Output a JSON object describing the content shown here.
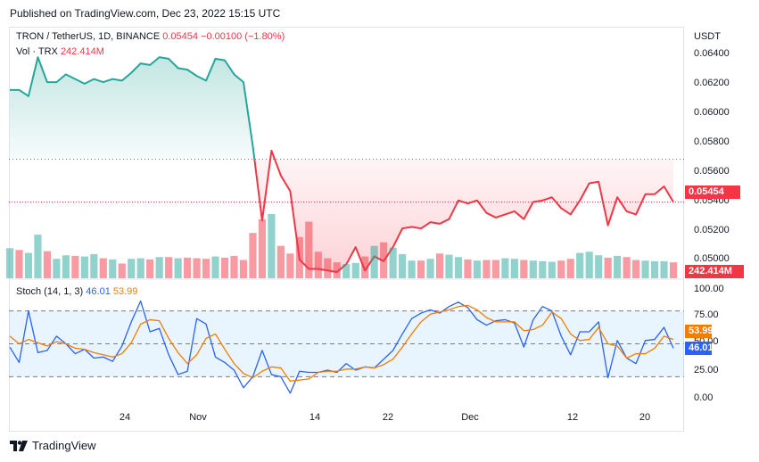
{
  "header": {
    "published": "Published on TradingView.com, Dec 23, 2022 15:15 UTC"
  },
  "legend": {
    "symbol": "TRON / TetherUS, 1D, BINANCE",
    "price": "0.05454",
    "change": "−0.00100 (−1.80%)",
    "volume_label": "Vol · TRX",
    "volume_value": "242.414M",
    "stoch_label": "Stoch (14, 1, 3)",
    "stoch_k": "46.01",
    "stoch_d": "53.99"
  },
  "price_axis": {
    "currency": "USDT",
    "ticks": [
      "0.06400",
      "0.06200",
      "0.06000",
      "0.05800",
      "0.05600",
      "0.05400",
      "0.05200",
      "0.05000"
    ],
    "last_price_tag": "0.05454",
    "volume_tag": "242.414M"
  },
  "stoch_axis": {
    "ticks": [
      "100.00",
      "75.00",
      "50.00",
      "25.00",
      "0.00"
    ],
    "d_tag": "53.99",
    "k_tag": "46.01"
  },
  "time_axis": {
    "ticks": [
      "24",
      "Nov",
      "14",
      "22",
      "Dec",
      "12",
      "20"
    ]
  },
  "footer": {
    "brand": "TradingView"
  },
  "colors": {
    "up": "#26a69a",
    "down": "#f23645",
    "stoch_k": "#2962ff",
    "stoch_d": "#f57c00"
  },
  "chart_data": [
    {
      "type": "area",
      "title": "TRON / TetherUS, 1D, BINANCE",
      "x_ticks": [
        "24",
        "Nov",
        "14",
        "22",
        "Dec",
        "12",
        "20"
      ],
      "ylim": [
        0.0496,
        0.0657
      ],
      "baseline": 0.05725,
      "series": [
        {
          "name": "TRXUSDT",
          "values": [
            0.0617,
            0.0617,
            0.0613,
            0.0638,
            0.0622,
            0.0622,
            0.0627,
            0.0624,
            0.0621,
            0.0624,
            0.0622,
            0.0624,
            0.0623,
            0.0628,
            0.0634,
            0.0633,
            0.0638,
            0.0637,
            0.0631,
            0.063,
            0.0626,
            0.0623,
            0.0637,
            0.0636,
            0.0627,
            0.0622,
            0.0581,
            0.0533,
            0.0578,
            0.0562,
            0.0552,
            0.0508,
            0.0502,
            0.0502,
            0.0501,
            0.05,
            0.0505,
            0.0516,
            0.0501,
            0.051,
            0.0507,
            0.0516,
            0.0528,
            0.0529,
            0.0528,
            0.0532,
            0.0531,
            0.0534,
            0.0546,
            0.0544,
            0.0546,
            0.0538,
            0.0535,
            0.0537,
            0.0539,
            0.0534,
            0.0545,
            0.0546,
            0.0548,
            0.0541,
            0.0537,
            0.0546,
            0.0557,
            0.0558,
            0.053,
            0.0548,
            0.0539,
            0.0537,
            0.055,
            0.055,
            0.0555,
            0.0545
          ]
        }
      ]
    },
    {
      "type": "bar",
      "title": "Vol · TRX",
      "last_value": "242.414M",
      "series": [
        {
          "name": "Volume",
          "values": [
            5.1,
            4.8,
            4.3,
            7.4,
            4.6,
            3.3,
            3.9,
            3.8,
            3.7,
            4.1,
            3.4,
            3.2,
            2.5,
            3.3,
            3.4,
            3.2,
            3.6,
            3.6,
            3.4,
            3.5,
            3.4,
            3.3,
            3.7,
            3.5,
            3.8,
            3.1,
            7.7,
            10.0,
            10.9,
            5.5,
            4.2,
            7.0,
            9.6,
            4.5,
            3.4,
            2.7,
            2.4,
            2.6,
            3.7,
            5.5,
            6.1,
            5.2,
            4.1,
            3.0,
            3.0,
            3.3,
            4.2,
            4.0,
            3.6,
            3.2,
            3.0,
            3.1,
            3.1,
            3.4,
            3.3,
            3.1,
            3.0,
            2.9,
            2.8,
            3.0,
            3.3,
            4.3,
            4.5,
            3.9,
            3.5,
            3.8,
            3.6,
            3.1,
            3.0,
            2.9,
            2.9,
            2.7
          ],
          "colors": [
            "up",
            "down",
            "up",
            "up",
            "down",
            "up",
            "up",
            "down",
            "up",
            "up",
            "down",
            "up",
            "down",
            "up",
            "up",
            "down",
            "up",
            "down",
            "up",
            "down",
            "down",
            "down",
            "up",
            "down",
            "down",
            "down",
            "down",
            "down",
            "up",
            "down",
            "down",
            "down",
            "down",
            "down",
            "down",
            "down",
            "up",
            "up",
            "down",
            "up",
            "down",
            "up",
            "up",
            "up",
            "down",
            "up",
            "down",
            "up",
            "up",
            "down",
            "up",
            "down",
            "down",
            "up",
            "up",
            "down",
            "up",
            "up",
            "up",
            "down",
            "down",
            "up",
            "up",
            "up",
            "down",
            "up",
            "down",
            "down",
            "up",
            "up",
            "up",
            "down"
          ]
        }
      ]
    },
    {
      "type": "line",
      "title": "Stoch (14, 1, 3)",
      "ylim": [
        0,
        100
      ],
      "bands": [
        20,
        50,
        80
      ],
      "series": [
        {
          "name": "%K",
          "values": [
            47,
            33,
            80,
            42,
            44,
            57,
            50,
            41,
            45,
            37,
            38,
            34,
            48,
            70,
            89,
            61,
            64,
            40,
            22,
            25,
            73,
            68,
            38,
            33,
            26,
            10,
            20,
            44,
            22,
            20,
            5,
            25,
            24,
            24,
            26,
            24,
            32,
            26,
            29,
            28,
            36,
            44,
            59,
            73,
            78,
            81,
            78,
            84,
            88,
            83,
            72,
            67,
            71,
            72,
            69,
            47,
            72,
            84,
            80,
            57,
            40,
            61,
            61,
            70,
            19,
            53,
            37,
            32,
            53,
            54,
            65,
            46
          ],
          "color": "stoch_k"
        },
        {
          "name": "%D",
          "values": [
            57,
            50,
            54,
            51,
            48,
            52,
            50,
            46,
            45,
            42,
            40,
            38,
            41,
            51,
            68,
            72,
            71,
            55,
            42,
            32,
            40,
            55,
            59,
            45,
            32,
            23,
            19,
            25,
            29,
            28,
            16,
            17,
            18,
            24,
            25,
            25,
            27,
            27,
            29,
            28,
            31,
            36,
            47,
            59,
            70,
            77,
            79,
            81,
            84,
            85,
            81,
            74,
            70,
            70,
            70,
            62,
            63,
            67,
            79,
            73,
            59,
            53,
            54,
            65,
            50,
            48,
            37,
            41,
            41,
            46,
            57,
            54
          ],
          "color": "stoch_d"
        }
      ]
    }
  ]
}
